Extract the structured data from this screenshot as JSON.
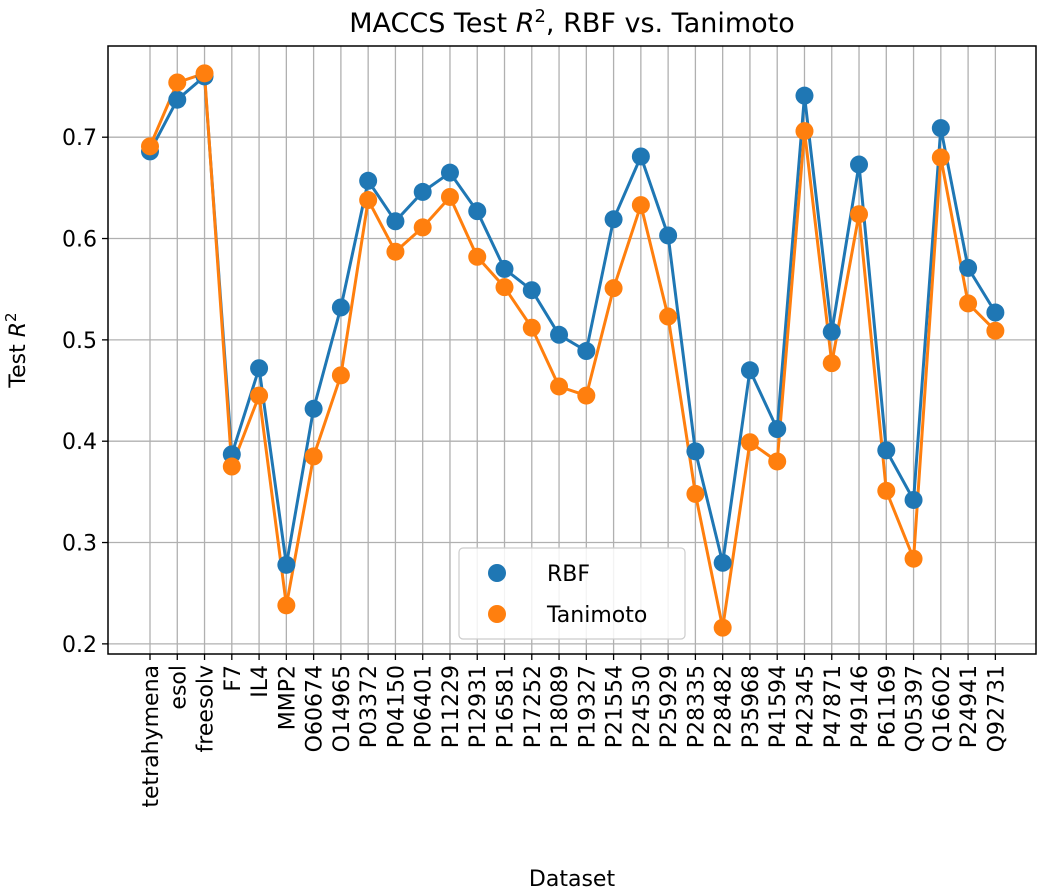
{
  "chart_data": {
    "type": "line",
    "title_main": "MACCS Test ",
    "title_var": "R",
    "title_sup": "2",
    "title_rest": ", RBF vs. Tanimoto",
    "xlabel": "Dataset",
    "ylabel_main": "Test ",
    "ylabel_var": "R",
    "ylabel_sup": "2",
    "ylim": [
      0.19,
      0.79
    ],
    "yticks": [
      "0.2",
      "0.3",
      "0.4",
      "0.5",
      "0.6",
      "0.7"
    ],
    "grid": true,
    "legend_position": "lower center",
    "categories": [
      "tetrahymena",
      "esol",
      "freesolv",
      "F7",
      "IL4",
      "MMP2",
      "O60674",
      "O14965",
      "P03372",
      "P04150",
      "P06401",
      "P11229",
      "P12931",
      "P16581",
      "P17252",
      "P18089",
      "P19327",
      "P21554",
      "P24530",
      "P25929",
      "P28335",
      "P28482",
      "P35968",
      "P41594",
      "P42345",
      "P47871",
      "P49146",
      "P61169",
      "Q05397",
      "Q16602",
      "P24941",
      "Q92731"
    ],
    "series": [
      {
        "name": "RBF",
        "color": "#1f77b4",
        "values": [
          0.686,
          0.737,
          0.76,
          0.387,
          0.472,
          0.278,
          0.432,
          0.532,
          0.657,
          0.617,
          0.646,
          0.665,
          0.627,
          0.57,
          0.549,
          0.505,
          0.489,
          0.619,
          0.681,
          0.603,
          0.39,
          0.28,
          0.47,
          0.412,
          0.741,
          0.508,
          0.673,
          0.391,
          0.342,
          0.709,
          0.571,
          0.527
        ]
      },
      {
        "name": "Tanimoto",
        "color": "#ff7f0e",
        "values": [
          0.691,
          0.754,
          0.763,
          0.375,
          0.445,
          0.238,
          0.385,
          0.465,
          0.638,
          0.587,
          0.611,
          0.641,
          0.582,
          0.552,
          0.512,
          0.454,
          0.445,
          0.551,
          0.633,
          0.523,
          0.348,
          0.216,
          0.399,
          0.38,
          0.706,
          0.477,
          0.624,
          0.351,
          0.284,
          0.68,
          0.536,
          0.509
        ]
      }
    ]
  }
}
